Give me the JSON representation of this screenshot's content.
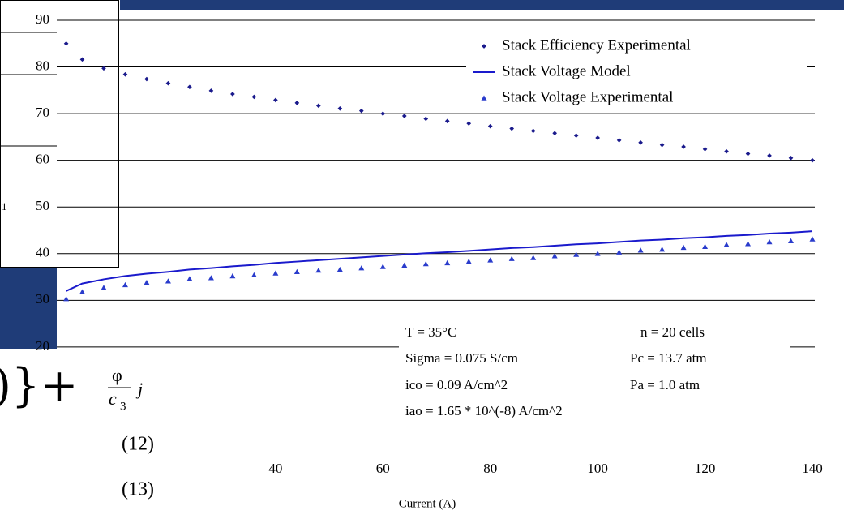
{
  "chart_data": {
    "type": "line",
    "x_label": "Current (A)",
    "x": [
      1,
      4,
      8,
      12,
      16,
      20,
      24,
      28,
      32,
      36,
      40,
      44,
      48,
      52,
      56,
      60,
      64,
      68,
      72,
      76,
      80,
      84,
      88,
      92,
      96,
      100,
      104,
      108,
      112,
      116,
      120,
      124,
      128,
      132,
      136,
      140
    ],
    "series": [
      {
        "name": "Stack Efficiency Experimental",
        "color": "#1a1a8c",
        "mark": "dot",
        "values": [
          85.0,
          81.6,
          79.7,
          78.4,
          77.4,
          76.5,
          75.7,
          74.9,
          74.2,
          73.6,
          72.9,
          72.3,
          71.7,
          71.1,
          70.6,
          70.0,
          69.5,
          68.9,
          68.4,
          67.9,
          67.3,
          66.8,
          66.3,
          65.8,
          65.3,
          64.8,
          64.3,
          63.8,
          63.3,
          62.9,
          62.4,
          61.9,
          61.4,
          61.0,
          60.5,
          60.0
        ]
      },
      {
        "name": "Stack Voltage Model",
        "color": "#1a1acc",
        "mark": "line",
        "values": [
          32.0,
          33.6,
          34.5,
          35.2,
          35.7,
          36.1,
          36.6,
          36.9,
          37.3,
          37.6,
          38.0,
          38.3,
          38.6,
          38.9,
          39.2,
          39.5,
          39.8,
          40.1,
          40.3,
          40.6,
          40.9,
          41.2,
          41.4,
          41.7,
          42.0,
          42.2,
          42.5,
          42.8,
          43.0,
          43.3,
          43.5,
          43.8,
          44.0,
          44.3,
          44.5,
          44.8
        ]
      },
      {
        "name": "Stack Voltage Experimental",
        "color": "#2a3ccc",
        "mark": "triangle",
        "values": [
          30.3,
          31.8,
          32.7,
          33.3,
          33.8,
          34.1,
          34.6,
          34.8,
          35.2,
          35.4,
          35.8,
          36.1,
          36.4,
          36.6,
          36.9,
          37.2,
          37.5,
          37.8,
          38.0,
          38.3,
          38.6,
          38.9,
          39.1,
          39.5,
          39.8,
          40.0,
          40.3,
          40.7,
          40.9,
          41.3,
          41.5,
          41.9,
          42.1,
          42.5,
          42.7,
          43.1
        ]
      }
    ],
    "xlim": [
      0,
      140
    ],
    "xticks": [
      40,
      60,
      80,
      100,
      120,
      140
    ],
    "ylim": [
      0,
      90
    ],
    "yticks": [
      20,
      30,
      40,
      50,
      60,
      70,
      80,
      90
    ],
    "grid": true,
    "legend": "top-right",
    "annotations": [
      "T = 35°C",
      "n = 20 cells",
      "Sigma = 0.075 S/cm",
      "Pc = 13.7 atm",
      "ico = 0.09 A/cm^2",
      "Pa = 1.0 atm",
      "iao = 1.65 * 10^(-8) A/cm^2"
    ]
  },
  "background": {
    "fragments": [
      "1",
      "φ",
      "c",
      "3",
      "j",
      "(12)",
      "(13)"
    ]
  }
}
